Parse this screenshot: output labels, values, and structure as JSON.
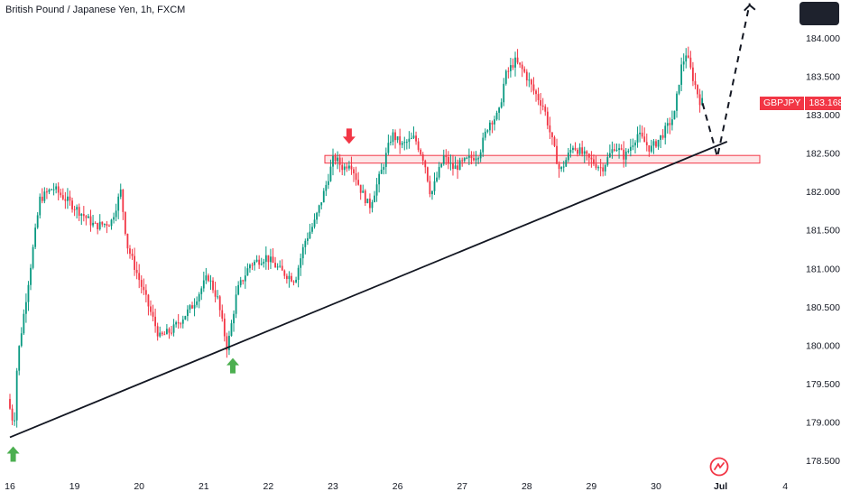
{
  "header": {
    "title": "British Pound / Japanese Yen, 1h, FXCM"
  },
  "price_tag": {
    "symbol": "GBPJPY",
    "value": "183.168"
  },
  "colors": {
    "up": "#089981",
    "down": "#f23645",
    "zone": "#f23645",
    "trendline": "#131722",
    "arrow_up": "#4caf50",
    "arrow_down": "#f23645",
    "axis_text": "#131722",
    "menu": "#1e222d"
  },
  "chart_data": {
    "type": "candlestick",
    "title": "British Pound / Japanese Yen, 1h, FXCM",
    "symbol": "GBPJPY",
    "ylim": [
      178.45,
      184.45
    ],
    "ytick_values": [
      178.5,
      179.0,
      179.5,
      180.0,
      180.5,
      181.0,
      181.5,
      182.0,
      182.5,
      183.0,
      183.5,
      184.0
    ],
    "ytick_labels": [
      "178.500",
      "179.000",
      "179.500",
      "180.000",
      "180.500",
      "181.000",
      "181.500",
      "182.000",
      "182.500",
      "183.000",
      "183.500",
      "184.000"
    ],
    "xticks": [
      "16",
      "19",
      "20",
      "21",
      "22",
      "23",
      "26",
      "27",
      "28",
      "29",
      "30",
      "Jul",
      "4"
    ],
    "last_price": 183.168,
    "price_path": [
      [
        0,
        179.3
      ],
      [
        0.1,
        178.95
      ],
      [
        0.15,
        179.8
      ],
      [
        0.3,
        180.7
      ],
      [
        0.5,
        181.9
      ],
      [
        0.7,
        182.05
      ],
      [
        0.9,
        181.9
      ],
      [
        1.1,
        181.75
      ],
      [
        1.35,
        181.55
      ],
      [
        1.6,
        181.6
      ],
      [
        1.75,
        182.0
      ],
      [
        1.85,
        181.3
      ],
      [
        2.1,
        180.7
      ],
      [
        2.35,
        180.1
      ],
      [
        2.55,
        180.2
      ],
      [
        2.85,
        180.5
      ],
      [
        3.1,
        180.9
      ],
      [
        3.25,
        180.6
      ],
      [
        3.4,
        179.95
      ],
      [
        3.55,
        180.7
      ],
      [
        3.75,
        181.05
      ],
      [
        4.0,
        181.15
      ],
      [
        4.25,
        180.95
      ],
      [
        4.45,
        180.85
      ],
      [
        4.6,
        181.35
      ],
      [
        4.75,
        181.6
      ],
      [
        4.9,
        182.0
      ],
      [
        5.05,
        182.45
      ],
      [
        5.2,
        182.3
      ],
      [
        5.3,
        182.4
      ],
      [
        5.45,
        182.05
      ],
      [
        5.6,
        181.8
      ],
      [
        5.8,
        182.3
      ],
      [
        5.95,
        182.75
      ],
      [
        6.1,
        182.6
      ],
      [
        6.3,
        182.7
      ],
      [
        6.45,
        182.4
      ],
      [
        6.55,
        181.95
      ],
      [
        6.75,
        182.45
      ],
      [
        6.9,
        182.3
      ],
      [
        7.1,
        182.4
      ],
      [
        7.3,
        182.5
      ],
      [
        7.45,
        182.9
      ],
      [
        7.6,
        183.0
      ],
      [
        7.7,
        183.5
      ],
      [
        7.85,
        183.7
      ],
      [
        8.0,
        183.55
      ],
      [
        8.15,
        183.3
      ],
      [
        8.3,
        183.1
      ],
      [
        8.4,
        182.75
      ],
      [
        8.55,
        182.25
      ],
      [
        8.75,
        182.6
      ],
      [
        8.95,
        182.45
      ],
      [
        9.2,
        182.3
      ],
      [
        9.4,
        182.6
      ],
      [
        9.55,
        182.45
      ],
      [
        9.75,
        182.75
      ],
      [
        9.95,
        182.55
      ],
      [
        10.1,
        182.7
      ],
      [
        10.22,
        182.85
      ],
      [
        10.32,
        183.0
      ],
      [
        10.42,
        183.6
      ],
      [
        10.5,
        183.8
      ],
      [
        10.6,
        183.5
      ],
      [
        10.72,
        183.168
      ]
    ],
    "resistance_zone": {
      "from": 182.37,
      "to": 182.47
    },
    "trendline": {
      "start": [
        0.0,
        178.8
      ],
      "end": [
        11.1,
        182.65
      ]
    },
    "projection": [
      [
        10.72,
        183.15
      ],
      [
        10.95,
        182.45
      ],
      [
        11.45,
        184.45
      ]
    ],
    "markers": [
      {
        "type": "arrow-up",
        "x": 0.05,
        "price": 178.8
      },
      {
        "type": "arrow-up",
        "x": 3.45,
        "price": 179.95
      },
      {
        "type": "arrow-down",
        "x": 5.25,
        "price": 182.55
      }
    ]
  }
}
